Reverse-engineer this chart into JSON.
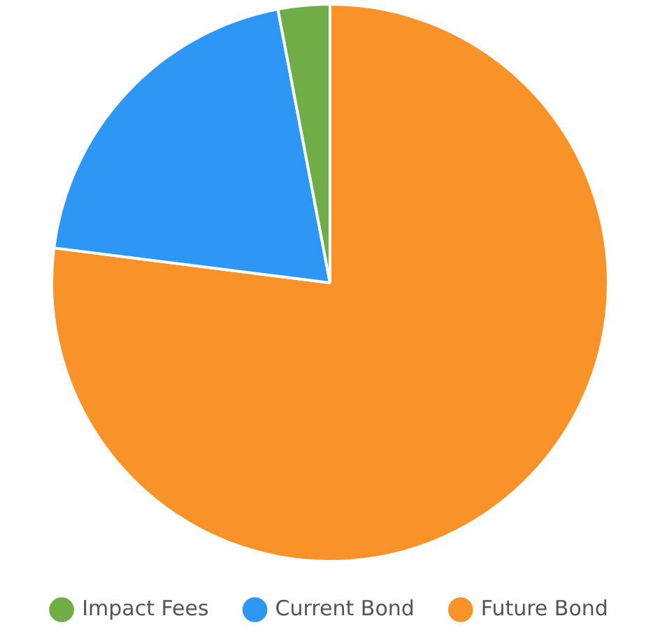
{
  "chart_data": {
    "type": "pie",
    "categories": [
      "Impact Fees",
      "Current Bond",
      "Future Bond"
    ],
    "values": [
      3,
      20,
      77
    ],
    "colors": [
      "#70ad47",
      "#2e96f5",
      "#f99228"
    ],
    "legend": "bottom"
  }
}
